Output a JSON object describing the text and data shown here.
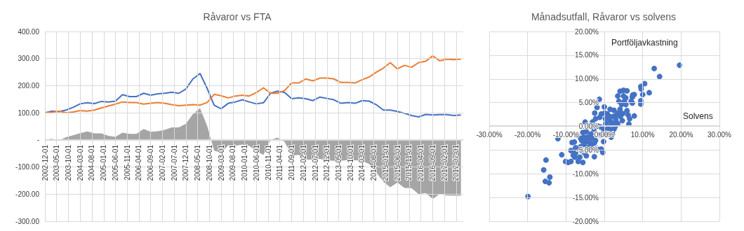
{
  "chart_data": [
    {
      "type": "line",
      "title": "Råvaror vs FTA",
      "grid": true,
      "x": [
        "2002-12",
        "2003-03",
        "2003-06",
        "2003-09",
        "2003-12",
        "2004-03",
        "2004-06",
        "2004-09",
        "2004-12",
        "2005-03",
        "2005-06",
        "2005-09",
        "2005-12",
        "2006-03",
        "2006-06",
        "2006-09",
        "2006-12",
        "2007-03",
        "2007-06",
        "2007-09",
        "2007-12",
        "2008-03",
        "2008-06",
        "2008-09",
        "2008-12",
        "2009-03",
        "2009-06",
        "2009-09",
        "2009-12",
        "2010-03",
        "2010-06",
        "2010-09",
        "2010-12",
        "2011-03",
        "2011-06",
        "2011-09",
        "2011-12",
        "2012-03",
        "2012-06",
        "2012-09",
        "2012-12",
        "2013-03",
        "2013-06",
        "2013-09",
        "2013-12",
        "2014-03",
        "2014-06",
        "2014-09",
        "2014-12",
        "2015-03",
        "2015-06",
        "2015-09",
        "2015-12",
        "2016-03",
        "2016-06",
        "2016-09",
        "2016-12",
        "2017-03",
        "2017-06",
        "2017-09"
      ],
      "series": [
        {
          "type": "area",
          "color": "#a5a5a5",
          "values": [
            0,
            4,
            -2,
            10,
            17,
            25,
            31,
            24,
            24,
            15,
            11,
            27,
            22,
            22,
            40,
            30,
            32,
            37,
            46,
            46,
            60,
            95,
            117,
            52,
            -40,
            -48,
            -20,
            -22,
            -17,
            -22,
            -42,
            -55,
            0,
            8,
            -7,
            -58,
            -55,
            -73,
            -73,
            -70,
            -75,
            -77,
            -77,
            -74,
            -75,
            -77,
            -89,
            -120,
            -155,
            -175,
            -157,
            -177,
            -178,
            -200,
            -196,
            -218,
            -199,
            -205,
            -206,
            -206
          ]
        },
        {
          "type": "line",
          "color": "#4472c4",
          "values": [
            100,
            106,
            104,
            110,
            120,
            133,
            137,
            134,
            142,
            140,
            143,
            167,
            160,
            160,
            172,
            165,
            170,
            172,
            176,
            172,
            188,
            225,
            245,
            190,
            128,
            115,
            135,
            140,
            148,
            140,
            133,
            137,
            172,
            180,
            175,
            152,
            155,
            152,
            145,
            158,
            153,
            148,
            135,
            138,
            135,
            145,
            143,
            130,
            110,
            110,
            105,
            98,
            90,
            85,
            94,
            92,
            93,
            93,
            90,
            92
          ]
        },
        {
          "type": "line",
          "color": "#ed7d31",
          "values": [
            100,
            102,
            106,
            100,
            103,
            108,
            106,
            110,
            118,
            125,
            132,
            140,
            138,
            138,
            132,
            135,
            138,
            135,
            130,
            126,
            128,
            130,
            128,
            138,
            168,
            163,
            155,
            162,
            165,
            162,
            175,
            192,
            172,
            172,
            182,
            210,
            210,
            225,
            218,
            228,
            228,
            225,
            212,
            212,
            210,
            222,
            232,
            250,
            265,
            285,
            262,
            275,
            268,
            285,
            290,
            310,
            292,
            298,
            296,
            298
          ]
        }
      ],
      "xlim": [
        "2002-12-01",
        "2017-10-01"
      ],
      "xticks": [
        "2002-12-01",
        "2003-05-01",
        "2003-10-01",
        "2004-03-01",
        "2004-08-01",
        "2005-01-01",
        "2005-06-01",
        "2005-11-01",
        "2006-04-01",
        "2006-09-01",
        "2007-02-01",
        "2007-07-01",
        "2007-12-01",
        "2008-05-01",
        "2008-10-01",
        "2009-03-01",
        "2009-08-01",
        "2010-01-01",
        "2010-06-01",
        "2010-11-01",
        "2011-04-01",
        "2011-09-01",
        "2012-02-01",
        "2012-07-01",
        "2012-12-01",
        "2013-05-01",
        "2013-10-01",
        "2014-03-01",
        "2014-08-01",
        "2015-01-01",
        "2015-06-01",
        "2015-11-01",
        "2016-04-01",
        "2016-09-01",
        "2017-02-01",
        "2017-07-01"
      ],
      "ylim": [
        -300,
        400
      ],
      "yticks": [
        {
          "value": -300,
          "label": "-300.00"
        },
        {
          "value": -200,
          "label": "-200.00"
        },
        {
          "value": -100,
          "label": "-100.00"
        },
        {
          "value": 0,
          "label": "-"
        },
        {
          "value": 100,
          "label": "100.00"
        },
        {
          "value": 200,
          "label": "200.00"
        },
        {
          "value": 300,
          "label": "300.00"
        },
        {
          "value": 400,
          "label": "400.00"
        }
      ]
    },
    {
      "type": "scatter",
      "title": "Månadsutfall, Råvaror vs solvens",
      "xlabel": "Solvens",
      "ylabel": "Portföljavkastning",
      "grid": true,
      "marker": "circle",
      "series": [
        {
          "color": "#4472c4",
          "x": [
            19.6,
            13.0,
            14.4,
            10.5,
            9.5,
            9.6,
            11.7,
            10.0,
            9.5,
            9.5,
            7.8,
            7.4,
            7.3,
            7.0,
            7.3,
            5.9,
            5.0,
            4.1,
            3.5,
            5.0,
            5.6,
            3.8,
            4.5,
            5.6,
            -1.3,
            0,
            -1.9,
            1.5,
            2.5,
            4.1,
            5.9,
            3.6,
            4.8,
            6.2,
            7.8,
            6.6,
            6.4,
            4.7,
            -2.5,
            -1.2,
            -2.3,
            0.8,
            2.4,
            0.3,
            1.5,
            3.0,
            0.4,
            1.8,
            2.8,
            1.0,
            2.5,
            2.1,
            0.5,
            1.8,
            -0.2,
            -5.0,
            -3.1,
            -3.9,
            -1.9,
            -1.0,
            -2.7,
            -4.7,
            -5.6,
            -3.5,
            -1.2,
            -4.4,
            -6.2,
            -3.2,
            -2.3,
            -7.2,
            -5.9,
            -4.9,
            -3.8,
            -2.6,
            -12.1,
            -8.4,
            -7.5,
            -6.2,
            -5.3,
            -4.4,
            -3.4,
            -1.9,
            -0.8,
            -0.4,
            -3.5,
            -8.7,
            -6.2,
            -5.3,
            -8.1,
            -7.7,
            -6.4,
            -4.7,
            -2.6,
            -11.1,
            -10.1,
            -9.4,
            -8.7,
            -6.8,
            -5.6,
            -15.2,
            -15.8,
            -15.4,
            -14.4,
            -14.2,
            -19.9,
            -0.8,
            0.1,
            1.3,
            3.5,
            1.9,
            -5.3,
            -4.1,
            -7.8,
            -7.5,
            5.2,
            3.2,
            4.2,
            2.5,
            -0.2
          ],
          "values": [
            12.9,
            12.2,
            10.5,
            9.0,
            8.4,
            7.9,
            7.1,
            6.7,
            5.4,
            4.7,
            6.7,
            6.6,
            6.2,
            5.3,
            4.9,
            7.5,
            7.6,
            7.4,
            6.4,
            6.4,
            6.0,
            5.3,
            4.6,
            4.6,
            5.7,
            4.1,
            4.0,
            3.6,
            3.4,
            3.6,
            3.3,
            2.8,
            2.7,
            2.4,
            2.2,
            1.6,
            0.5,
            1.2,
            2.8,
            1.9,
            1.6,
            2.6,
            2.1,
            1.6,
            1.2,
            1.4,
            0.6,
            0.4,
            -0.1,
            -0.4,
            -0.6,
            -1.6,
            -1.8,
            -2.3,
            -3.2,
            0.9,
            0.9,
            0.1,
            0.2,
            -0.1,
            -0.6,
            -1.1,
            -1.3,
            -1.6,
            -1.9,
            -2.3,
            -2.5,
            -2.5,
            -3.0,
            -1.8,
            -3.0,
            -3.3,
            -3.5,
            -3.5,
            -2.6,
            -3.4,
            -4.5,
            -4.3,
            -3.8,
            -4.5,
            -4.0,
            -4.7,
            -4.8,
            -5.5,
            -4.8,
            -5.1,
            -5.0,
            -5.5,
            -6.1,
            -6.5,
            -6.5,
            -6.2,
            -6.4,
            -6.0,
            -7.4,
            -7.6,
            -7.4,
            -7.4,
            -7.6,
            -7.1,
            -9.2,
            -11.6,
            -11.9,
            -10.7,
            -14.8,
            2.6,
            2.8,
            2.1,
            0.6,
            -0.8,
            -2.3,
            -3.0,
            -3.3,
            -5.6,
            5.3,
            2.4,
            2.1,
            0.6,
            -0.6
          ]
        }
      ],
      "xlim": [
        -30,
        30
      ],
      "xticks": [
        {
          "value": -30,
          "label": "-30.00%"
        },
        {
          "value": -20,
          "label": "-20.00%"
        },
        {
          "value": -10,
          "label": "-10.00%"
        },
        {
          "value": 0,
          "label": "0.00%"
        },
        {
          "value": 10,
          "label": "10.00%"
        },
        {
          "value": 20,
          "label": "20.00%"
        },
        {
          "value": 30,
          "label": "30.00%"
        }
      ],
      "ylim": [
        -20,
        20
      ],
      "yticks": [
        {
          "value": -20,
          "label": "-20.00%"
        },
        {
          "value": -15,
          "label": "-15.00%"
        },
        {
          "value": -10,
          "label": "-10.00%"
        },
        {
          "value": -5,
          "label": "-5.00%"
        },
        {
          "value": 0,
          "label": "0.00%"
        },
        {
          "value": 5,
          "label": "5.00%"
        },
        {
          "value": 10,
          "label": "10.00%"
        },
        {
          "value": 15,
          "label": "15.00%"
        },
        {
          "value": 20,
          "label": "20.00%"
        }
      ]
    }
  ]
}
